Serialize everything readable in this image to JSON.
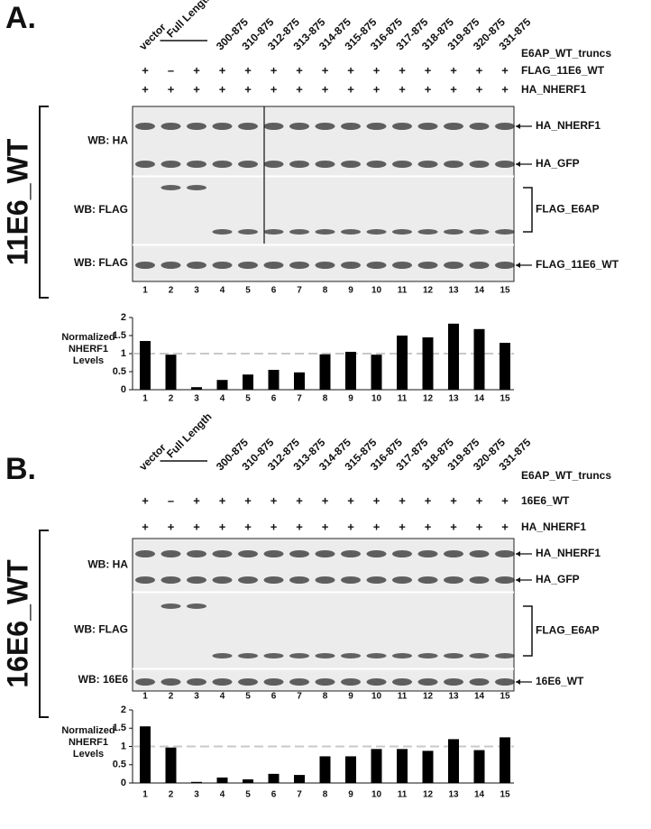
{
  "panels": [
    {
      "label": "A.",
      "group_label": "11E6_WT",
      "constructs": {
        "title": "E6AP_WT_truncs",
        "names": [
          "vector",
          "Full Length",
          "300-875",
          "310-875",
          "312-875",
          "313-875",
          "314-875",
          "315-875",
          "316-875",
          "317-875",
          "318-875",
          "319-875",
          "320-875",
          "331-875"
        ]
      },
      "treatments": [
        {
          "name": "FLAG_11E6_WT",
          "signs": [
            "+",
            "–",
            "+",
            "+",
            "+",
            "+",
            "+",
            "+",
            "+",
            "+",
            "+",
            "+",
            "+",
            "+",
            "+"
          ]
        },
        {
          "name": "HA_NHERF1",
          "signs": [
            "+",
            "+",
            "+",
            "+",
            "+",
            "+",
            "+",
            "+",
            "+",
            "+",
            "+",
            "+",
            "+",
            "+",
            "+"
          ]
        }
      ],
      "blots": [
        {
          "label": "WB: HA",
          "bands": [
            "HA_NHERF1",
            "HA_GFP"
          ]
        },
        {
          "label": "WB: FLAG",
          "bands": [
            "FLAG_E6AP"
          ]
        },
        {
          "label": "WB: FLAG",
          "bands": [
            "FLAG_11E6_WT"
          ]
        }
      ],
      "lanes": [
        "1",
        "2",
        "3",
        "4",
        "5",
        "6",
        "7",
        "8",
        "9",
        "10",
        "11",
        "12",
        "13",
        "14",
        "15"
      ]
    },
    {
      "label": "B.",
      "group_label": "16E6_WT",
      "constructs": {
        "title": "E6AP_WT_truncs",
        "names": [
          "vector",
          "Full Length",
          "300-875",
          "310-875",
          "312-875",
          "313-875",
          "314-875",
          "315-875",
          "316-875",
          "317-875",
          "318-875",
          "319-875",
          "320-875",
          "331-875"
        ]
      },
      "treatments": [
        {
          "name": "16E6_WT",
          "signs": [
            "+",
            "–",
            "+",
            "+",
            "+",
            "+",
            "+",
            "+",
            "+",
            "+",
            "+",
            "+",
            "+",
            "+",
            "+"
          ]
        },
        {
          "name": "HA_NHERF1",
          "signs": [
            "+",
            "+",
            "+",
            "+",
            "+",
            "+",
            "+",
            "+",
            "+",
            "+",
            "+",
            "+",
            "+",
            "+",
            "+"
          ]
        }
      ],
      "blots": [
        {
          "label": "WB: HA",
          "bands": [
            "HA_NHERF1",
            "HA_GFP"
          ]
        },
        {
          "label": "WB: FLAG",
          "bands": [
            "FLAG_E6AP"
          ]
        },
        {
          "label": "WB: 16E6",
          "bands": [
            "16E6_WT"
          ]
        }
      ],
      "lanes": [
        "1",
        "2",
        "3",
        "4",
        "5",
        "6",
        "7",
        "8",
        "9",
        "10",
        "11",
        "12",
        "13",
        "14",
        "15"
      ]
    }
  ],
  "chart_data": [
    {
      "type": "bar",
      "y_label": "Normalized NHERF1 Levels",
      "categories": [
        "1",
        "2",
        "3",
        "4",
        "5",
        "6",
        "7",
        "8",
        "9",
        "10",
        "11",
        "12",
        "13",
        "14",
        "15"
      ],
      "values": [
        1.35,
        0.97,
        0.07,
        0.27,
        0.42,
        0.55,
        0.48,
        0.98,
        1.05,
        0.97,
        1.5,
        1.45,
        1.83,
        1.68,
        1.3
      ],
      "color": "#000000",
      "ylim": [
        0,
        2
      ],
      "yticks": [
        0,
        0.5,
        1,
        1.5,
        2
      ],
      "reference_line": 1,
      "reference_color": "#c8c8c8"
    },
    {
      "type": "bar",
      "y_label": "Normalized NHERF1 Levels",
      "categories": [
        "1",
        "2",
        "3",
        "4",
        "5",
        "6",
        "7",
        "8",
        "9",
        "10",
        "11",
        "12",
        "13",
        "14",
        "15"
      ],
      "values": [
        1.55,
        0.97,
        0.03,
        0.15,
        0.1,
        0.25,
        0.22,
        0.73,
        0.73,
        0.93,
        0.93,
        0.88,
        1.2,
        0.9,
        1.25
      ],
      "color": "#000000",
      "ylim": [
        0,
        2
      ],
      "yticks": [
        0,
        0.5,
        1,
        1.5,
        2
      ],
      "reference_line": 1,
      "reference_color": "#c8c8c8"
    }
  ]
}
